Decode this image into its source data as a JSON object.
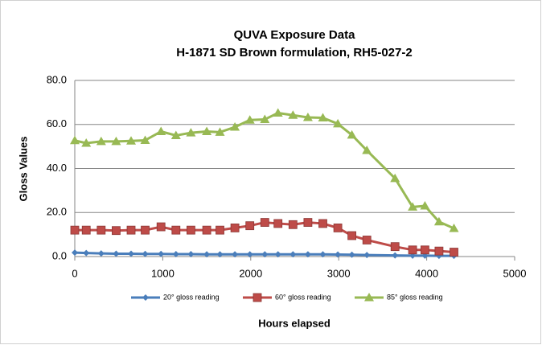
{
  "chart_data": {
    "type": "line",
    "title": "QUVA Exposure Data",
    "subtitle": "H-1871 SD Brown formulation, RH5-027-2",
    "y_label": "Gloss Values",
    "x_label": "Hours elapsed",
    "x": [
      0,
      130,
      300,
      470,
      640,
      800,
      980,
      1150,
      1320,
      1500,
      1650,
      1820,
      1990,
      2160,
      2310,
      2480,
      2650,
      2820,
      2990,
      3150,
      3320,
      3640,
      3840,
      3980,
      4140,
      4310
    ],
    "series": [
      {
        "name": "20° gloss reading",
        "color": "#4a7ebb",
        "marker": "diamond",
        "values": [
          1.8,
          1.6,
          1.4,
          1.3,
          1.3,
          1.2,
          1.2,
          1.1,
          1.1,
          1.0,
          1.0,
          1.0,
          1.0,
          1.0,
          1.0,
          1.0,
          1.0,
          1.0,
          0.9,
          0.8,
          0.7,
          0.5,
          0.4,
          0.4,
          0.3,
          0.3
        ]
      },
      {
        "name": "60° gloss reading",
        "color": "#be4b48",
        "marker": "square",
        "values": [
          12,
          12,
          12,
          11.8,
          12,
          12,
          13.5,
          12,
          12,
          12,
          12,
          13,
          14,
          15.5,
          15,
          14.5,
          15.5,
          15,
          13,
          9.5,
          7.5,
          4.5,
          3,
          3,
          2.5,
          2
        ]
      },
      {
        "name": "85° gloss reading",
        "color": "#98b954",
        "marker": "triangle",
        "values": [
          52.7,
          51.5,
          52.3,
          52.3,
          52.5,
          52.8,
          56.8,
          55,
          56.2,
          56.8,
          56.5,
          58.8,
          62,
          62.3,
          65.2,
          64.2,
          63.2,
          63,
          60.3,
          55.2,
          48.2,
          35.5,
          22.5,
          23,
          15.8,
          12.8
        ]
      }
    ],
    "xlim": [
      0,
      5000
    ],
    "xticks": [
      0,
      1000,
      2000,
      3000,
      4000,
      5000
    ],
    "ylim": [
      0,
      80
    ],
    "yticks": [
      {
        "value": 0,
        "label": "0.0"
      },
      {
        "value": 20,
        "label": "20.0"
      },
      {
        "value": 40,
        "label": "40.0"
      },
      {
        "value": 60,
        "label": "60.0"
      },
      {
        "value": 80,
        "label": "80.0"
      }
    ],
    "grid": true,
    "legend": "bottom"
  }
}
